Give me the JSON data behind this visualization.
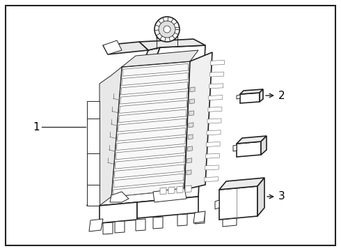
{
  "bg_color": "#ffffff",
  "border_color": "#000000",
  "line_color": "#666666",
  "dark_line": "#222222",
  "mid_line": "#444444",
  "label_color": "#000000",
  "fig_width": 4.9,
  "fig_height": 3.6,
  "dpi": 100,
  "label1": "1",
  "label2": "2",
  "label3": "3",
  "lw_main": 1.2,
  "lw_inner": 0.7,
  "lw_thin": 0.5
}
